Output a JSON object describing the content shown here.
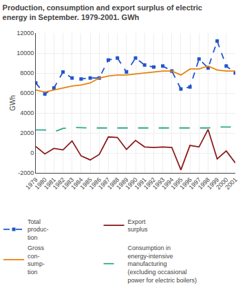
{
  "chart_data": {
    "type": "line",
    "title": "Production, consumption and export surplus of electric\nenergy in September. 1979-2001. GWh",
    "ylabel": "GWh",
    "x": [
      1979,
      1980,
      1981,
      1982,
      1983,
      1984,
      1985,
      1986,
      1987,
      1988,
      1989,
      1990,
      1991,
      1992,
      1993,
      1994,
      1995,
      1996,
      1997,
      1998,
      1999,
      2000,
      2001
    ],
    "series": [
      {
        "name": "Total\nproduc-\ntion",
        "color": "#2255cc",
        "marker": "square",
        "line_style": "dashed",
        "values": [
          7000,
          5900,
          6500,
          8100,
          7500,
          7400,
          7500,
          7500,
          9300,
          9500,
          8100,
          9500,
          8800,
          8600,
          8700,
          8200,
          6400,
          6600,
          9400,
          8500,
          11200,
          8700,
          8000
        ]
      },
      {
        "name": "Export\nsurplus",
        "color": "#8b1a1a",
        "line_style": "solid",
        "values": [
          650,
          -100,
          450,
          300,
          1200,
          -300,
          -700,
          -150,
          1600,
          1550,
          350,
          1250,
          600,
          550,
          600,
          550,
          -1700,
          750,
          600,
          2350,
          -600,
          200,
          -1000
        ]
      },
      {
        "name": "Gross\ncon-\nsump-\ntion",
        "color": "#e8820a",
        "line_style": "solid",
        "values": [
          6300,
          6100,
          6300,
          6500,
          6700,
          6800,
          7000,
          7500,
          7700,
          7800,
          7800,
          7900,
          8000,
          8100,
          8200,
          8200,
          7800,
          8400,
          8400,
          8700,
          8300,
          8200,
          8200
        ]
      },
      {
        "name": "Consumption in\nenergy-intensive\nmanufacturing\n(excluding occasional\npower for electric boilers)",
        "color": "#2aaa8a",
        "line_style": "longdash",
        "values": [
          2300,
          2300,
          2100,
          2450,
          2550,
          2500,
          2500,
          2500,
          2500,
          2500,
          2500,
          2500,
          2500,
          2500,
          2500,
          2500,
          2500,
          2500,
          2500,
          2500,
          2600,
          2600,
          2600
        ]
      }
    ],
    "xlim": [
      1979,
      2001
    ],
    "xticks": [
      1979,
      1980,
      1981,
      1982,
      1983,
      1984,
      1985,
      1986,
      1987,
      1988,
      1989,
      1990,
      1991,
      1992,
      1993,
      1994,
      1995,
      1996,
      1997,
      1998,
      1999,
      2000,
      2001
    ],
    "ylim": [
      -2000,
      12000
    ],
    "yticks": [
      -2000,
      0,
      2000,
      4000,
      6000,
      8000,
      10000,
      12000
    ],
    "grid": true,
    "legend": "bottom"
  }
}
